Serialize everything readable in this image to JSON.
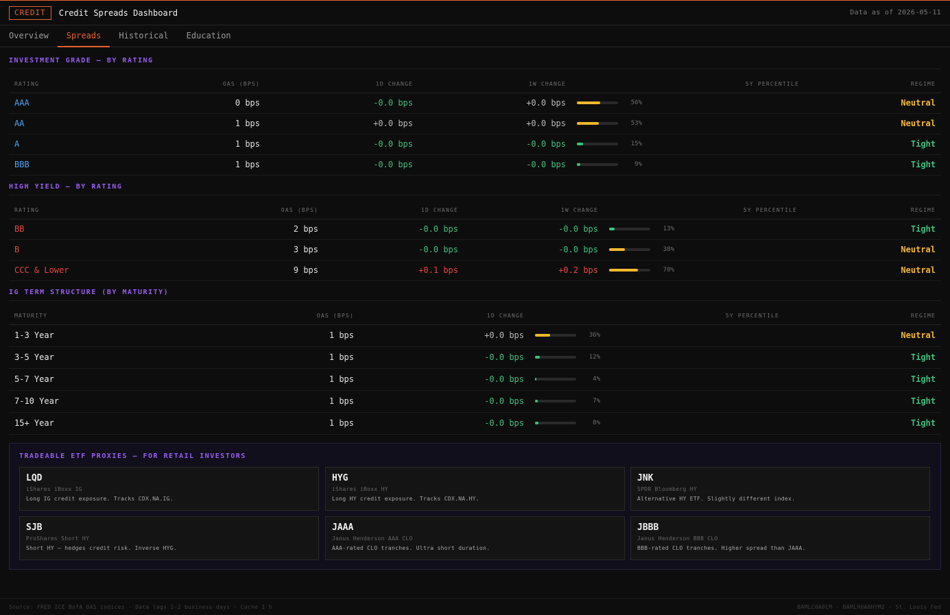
{
  "header": {
    "badge": "CREDIT",
    "title": "Credit Spreads Dashboard",
    "as_of": "Data as of 2026-05-11"
  },
  "tabs": [
    {
      "label": "Overview",
      "active": false
    },
    {
      "label": "Spreads",
      "active": true
    },
    {
      "label": "Historical",
      "active": false
    },
    {
      "label": "Education",
      "active": false
    }
  ],
  "ig": {
    "title": "INVESTMENT GRADE — BY RATING",
    "columns": [
      "RATING",
      "OAS (BPS)",
      "1D CHANGE",
      "1W CHANGE",
      "5Y PERCENTILE",
      "REGIME"
    ],
    "rows": [
      {
        "rating": "AAA",
        "oas": "0 bps",
        "d1": "-0.0 bps",
        "d1_dir": "neg",
        "w1": "+0.0 bps",
        "w1_dir": "flat",
        "pct": 56,
        "pct_label": "56%",
        "regime": "Neutral"
      },
      {
        "rating": "AA",
        "oas": "1 bps",
        "d1": "+0.0 bps",
        "d1_dir": "flat",
        "w1": "+0.0 bps",
        "w1_dir": "flat",
        "pct": 53,
        "pct_label": "53%",
        "regime": "Neutral"
      },
      {
        "rating": "A",
        "oas": "1 bps",
        "d1": "-0.0 bps",
        "d1_dir": "neg",
        "w1": "-0.0 bps",
        "w1_dir": "neg",
        "pct": 15,
        "pct_label": "15%",
        "regime": "Tight"
      },
      {
        "rating": "BBB",
        "oas": "1 bps",
        "d1": "-0.0 bps",
        "d1_dir": "neg",
        "w1": "-0.0 bps",
        "w1_dir": "neg",
        "pct": 9,
        "pct_label": "9%",
        "regime": "Tight"
      }
    ]
  },
  "hy": {
    "title": "HIGH YIELD — BY RATING",
    "columns": [
      "RATING",
      "OAS (BPS)",
      "1D CHANGE",
      "1W CHANGE",
      "5Y PERCENTILE",
      "REGIME"
    ],
    "rows": [
      {
        "rating": "BB",
        "oas": "2 bps",
        "d1": "-0.0 bps",
        "d1_dir": "neg",
        "w1": "-0.0 bps",
        "w1_dir": "neg",
        "pct": 13,
        "pct_label": "13%",
        "regime": "Tight"
      },
      {
        "rating": "B",
        "oas": "3 bps",
        "d1": "-0.0 bps",
        "d1_dir": "neg",
        "w1": "-0.0 bps",
        "w1_dir": "neg",
        "pct": 38,
        "pct_label": "38%",
        "regime": "Neutral"
      },
      {
        "rating": "CCC & Lower",
        "oas": "9 bps",
        "d1": "+0.1 bps",
        "d1_dir": "pos",
        "w1": "+0.2 bps",
        "w1_dir": "pos",
        "pct": 70,
        "pct_label": "70%",
        "regime": "Neutral"
      }
    ]
  },
  "ts": {
    "title": "IG TERM STRUCTURE (BY MATURITY)",
    "columns": [
      "MATURITY",
      "OAS (BPS)",
      "1D CHANGE",
      "5Y PERCENTILE",
      "REGIME"
    ],
    "rows": [
      {
        "maturity": "1-3 Year",
        "oas": "1 bps",
        "d1": "+0.0 bps",
        "d1_dir": "flat",
        "pct": 36,
        "pct_label": "36%",
        "regime": "Neutral"
      },
      {
        "maturity": "3-5 Year",
        "oas": "1 bps",
        "d1": "-0.0 bps",
        "d1_dir": "neg",
        "pct": 12,
        "pct_label": "12%",
        "regime": "Tight"
      },
      {
        "maturity": "5-7 Year",
        "oas": "1 bps",
        "d1": "-0.0 bps",
        "d1_dir": "neg",
        "pct": 4,
        "pct_label": "4%",
        "regime": "Tight"
      },
      {
        "maturity": "7-10 Year",
        "oas": "1 bps",
        "d1": "-0.0 bps",
        "d1_dir": "neg",
        "pct": 7,
        "pct_label": "7%",
        "regime": "Tight"
      },
      {
        "maturity": "15+ Year",
        "oas": "1 bps",
        "d1": "-0.0 bps",
        "d1_dir": "neg",
        "pct": 8,
        "pct_label": "8%",
        "regime": "Tight"
      }
    ]
  },
  "etf": {
    "title": "TRADEABLE ETF PROXIES — FOR RETAIL INVESTORS",
    "cards": [
      {
        "symbol": "LQD",
        "name": "iShares iBoxx IG",
        "desc": "Long IG credit exposure. Tracks CDX.NA.IG."
      },
      {
        "symbol": "HYG",
        "name": "iShares iBoxx HY",
        "desc": "Long HY credit exposure. Tracks CDX.NA.HY."
      },
      {
        "symbol": "JNK",
        "name": "SPDR Bloomberg HY",
        "desc": "Alternative HY ETF. Slightly different index."
      },
      {
        "symbol": "SJB",
        "name": "ProShares Short HY",
        "desc": "Short HY — hedges credit risk. Inverse HYG."
      },
      {
        "symbol": "JAAA",
        "name": "Janus Henderson AAA CLO",
        "desc": "AAA-rated CLO tranches. Ultra short duration."
      },
      {
        "symbol": "JBBB",
        "name": "Janus Henderson BBB CLO",
        "desc": "BBB-rated CLO tranches. Higher spread than JAAA."
      }
    ]
  },
  "footer": {
    "left": "Source: FRED ICE BofA OAS indices · Data lags 1-2 business days · Cache 1 h",
    "right": "BAMLC0A0CM · BAMLH0A0HYM2 · St. Louis Fed"
  },
  "colors": {
    "accent": "#e8622c",
    "section": "#9a5cf2",
    "neutral": "#f5b82e",
    "tight": "#3fbf7f",
    "negative": "#e84545",
    "ig_rating": "#4aa3f0"
  }
}
